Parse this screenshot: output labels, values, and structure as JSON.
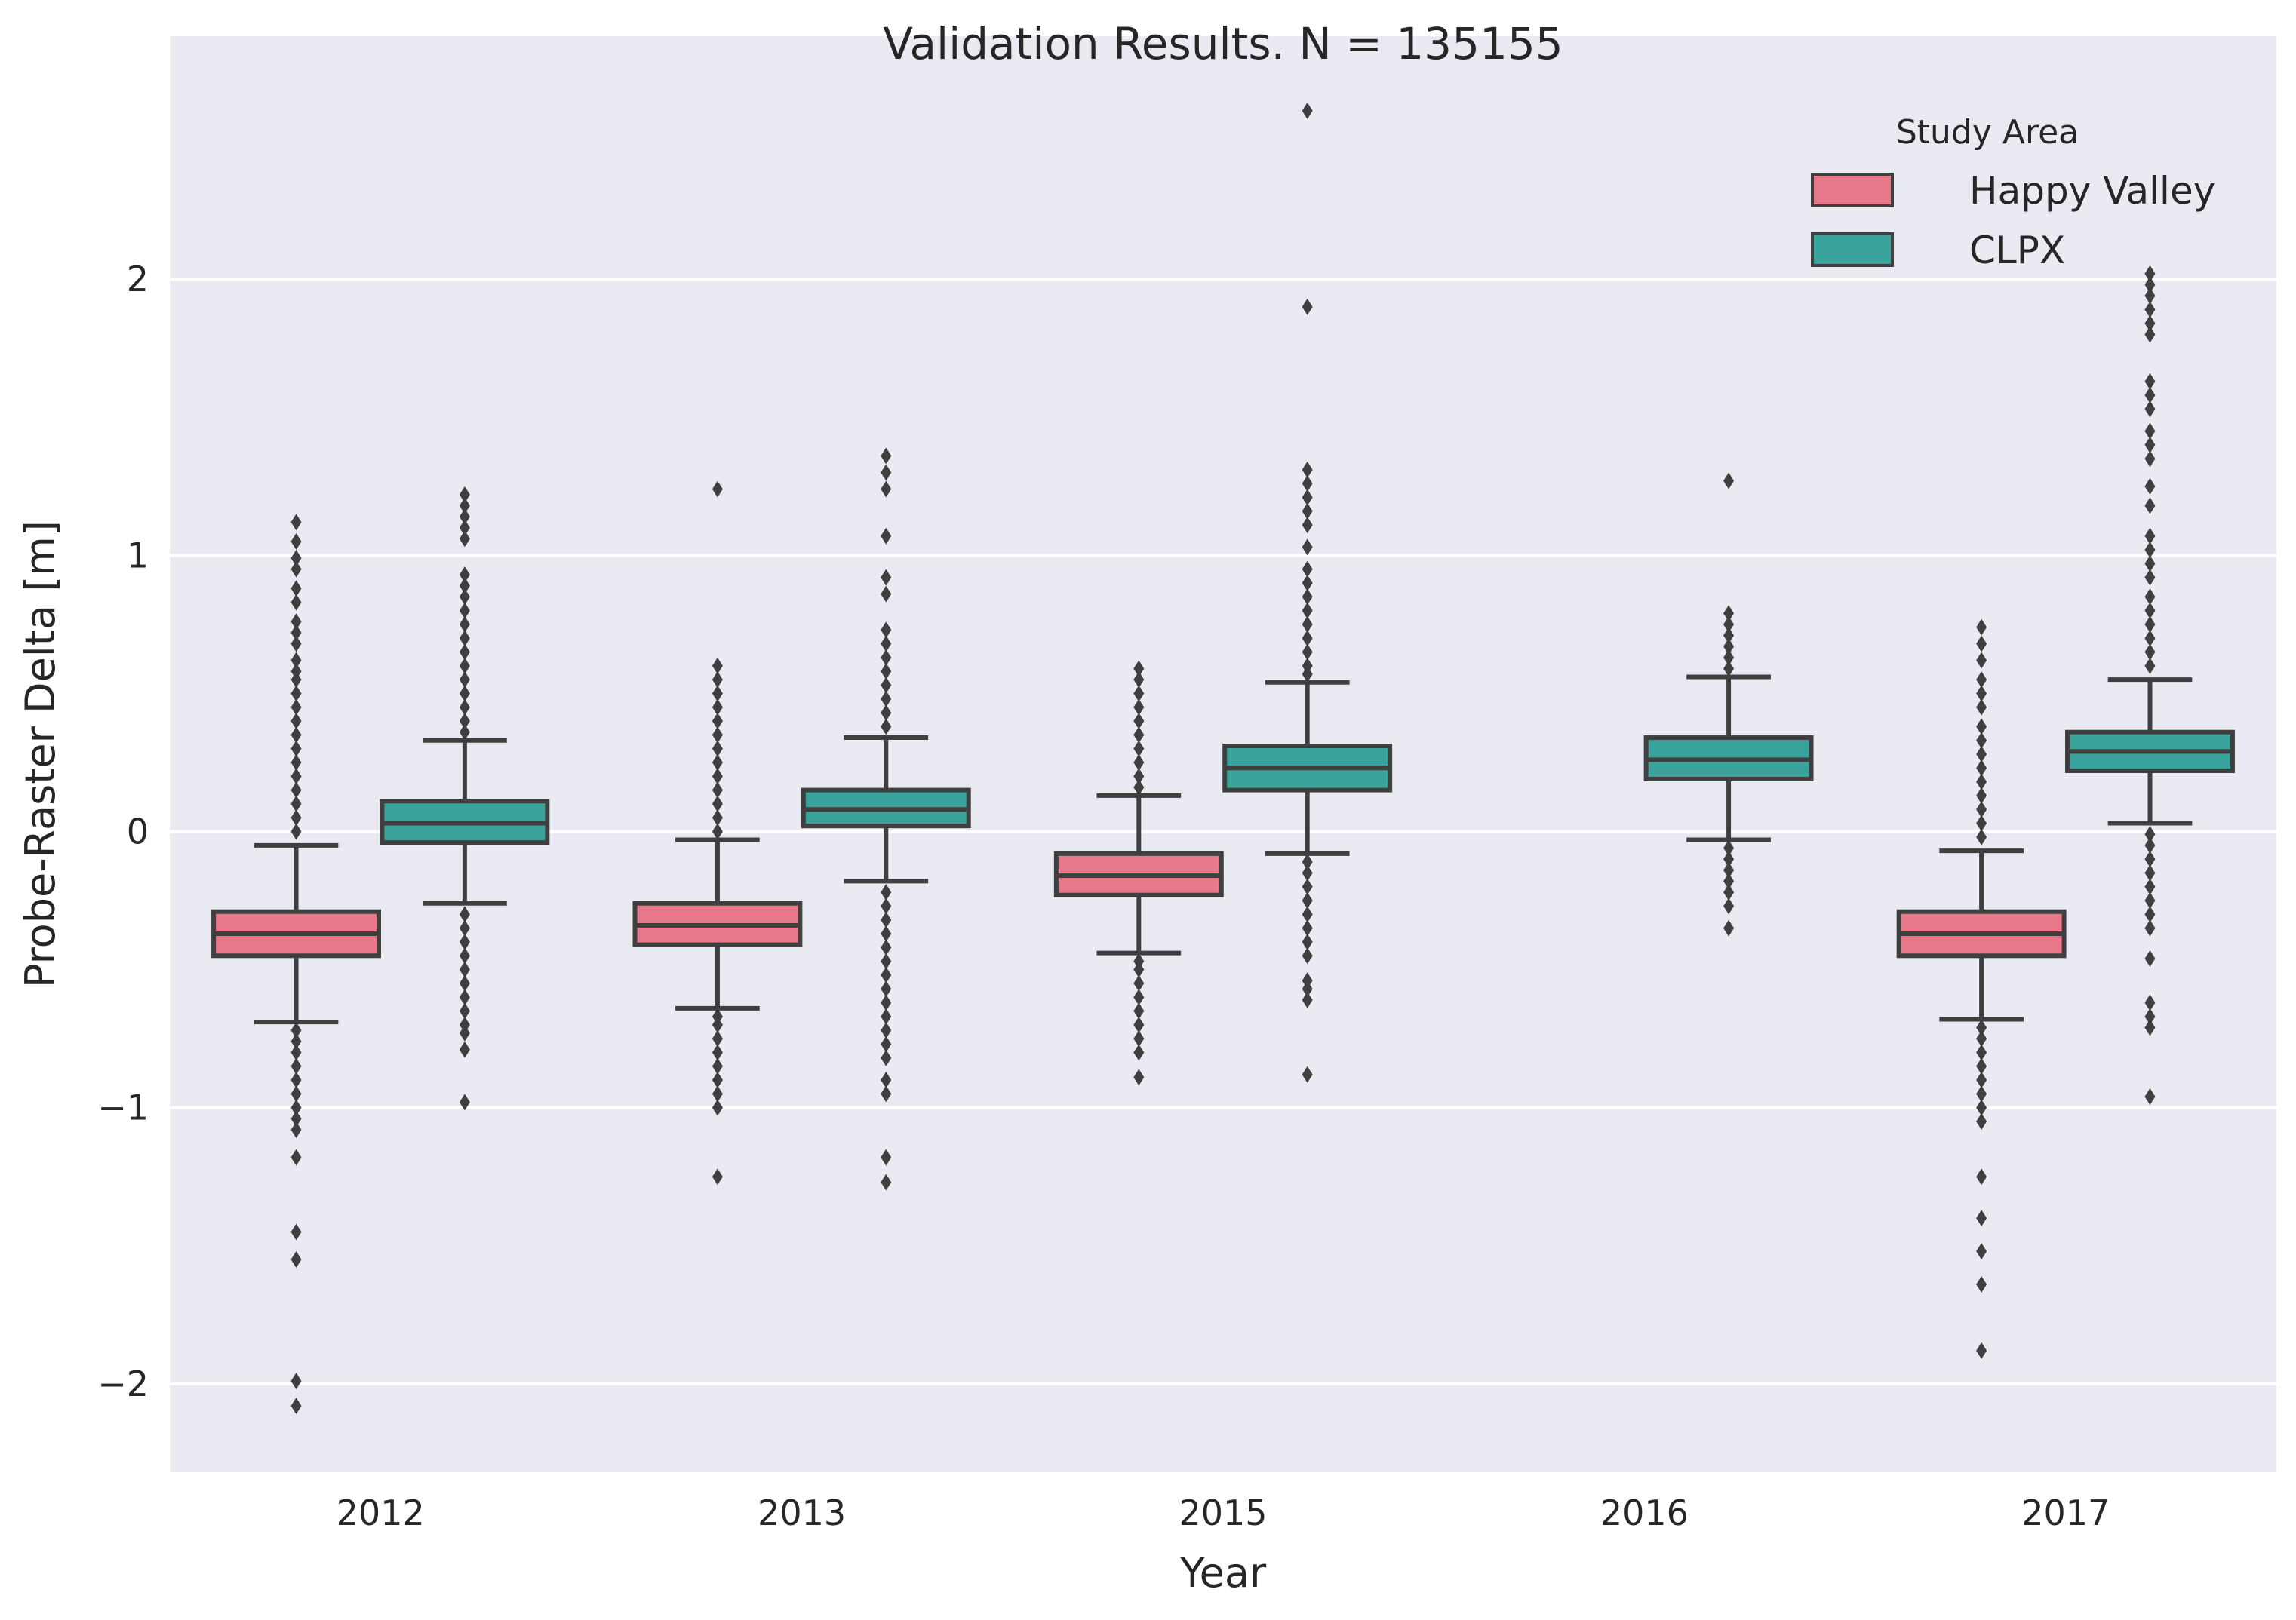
{
  "chart_data": {
    "type": "box",
    "title": "Validation Results. N = 135155",
    "xlabel": "Year",
    "ylabel": "Probe-Raster Delta [m]",
    "categories": [
      "2012",
      "2013",
      "2015",
      "2016",
      "2017"
    ],
    "ylim": [
      -2.32,
      2.88
    ],
    "yticks": [
      -2,
      -1,
      0,
      1,
      2
    ],
    "ytick_labels": [
      "−2",
      "−1",
      "0",
      "1",
      "2"
    ],
    "grid": true,
    "background": "#eaeaf2",
    "legend": {
      "title": "Study Area",
      "placement": "top-right",
      "entries": [
        "Happy Valley",
        "CLPX"
      ]
    },
    "series": [
      {
        "name": "Happy Valley",
        "color": "#e7788a",
        "boxes": [
          {
            "category": "2012",
            "whisker_low": -0.69,
            "q1": -0.45,
            "median": -0.37,
            "q3": -0.29,
            "whisker_high": -0.05,
            "outliers": [
              1.12,
              1.05,
              0.99,
              0.95,
              0.88,
              0.83,
              0.76,
              0.72,
              0.68,
              0.62,
              0.58,
              0.55,
              0.5,
              0.45,
              0.4,
              0.35,
              0.3,
              0.25,
              0.2,
              0.15,
              0.1,
              0.05,
              0.0,
              -0.72,
              -0.76,
              -0.8,
              -0.85,
              -0.9,
              -0.95,
              -1.0,
              -1.04,
              -1.08,
              -1.18,
              -1.45,
              -1.55,
              -1.99,
              -2.08
            ]
          },
          {
            "category": "2013",
            "whisker_low": -0.64,
            "q1": -0.41,
            "median": -0.34,
            "q3": -0.26,
            "whisker_high": -0.03,
            "outliers": [
              1.24,
              0.6,
              0.55,
              0.5,
              0.45,
              0.4,
              0.35,
              0.3,
              0.25,
              0.2,
              0.15,
              0.1,
              0.05,
              0.0,
              -0.67,
              -0.7,
              -0.75,
              -0.8,
              -0.85,
              -0.9,
              -0.95,
              -1.0,
              -1.25
            ]
          },
          {
            "category": "2015",
            "whisker_low": -0.44,
            "q1": -0.23,
            "median": -0.16,
            "q3": -0.08,
            "whisker_high": 0.13,
            "outliers": [
              0.59,
              0.55,
              0.5,
              0.45,
              0.4,
              0.35,
              0.3,
              0.25,
              0.2,
              0.16,
              -0.47,
              -0.5,
              -0.55,
              -0.6,
              -0.65,
              -0.7,
              -0.75,
              -0.8,
              -0.89
            ]
          },
          {
            "category": "2017",
            "whisker_low": -0.68,
            "q1": -0.45,
            "median": -0.37,
            "q3": -0.29,
            "whisker_high": -0.07,
            "outliers": [
              0.74,
              0.68,
              0.62,
              0.55,
              0.5,
              0.45,
              0.38,
              0.33,
              0.28,
              0.23,
              0.18,
              0.13,
              0.08,
              0.03,
              -0.02,
              -0.71,
              -0.75,
              -0.8,
              -0.85,
              -0.9,
              -0.95,
              -1.0,
              -1.05,
              -1.25,
              -1.4,
              -1.52,
              -1.64,
              -1.88
            ]
          }
        ]
      },
      {
        "name": "CLPX",
        "color": "#3aa39c",
        "boxes": [
          {
            "category": "2012",
            "whisker_low": -0.26,
            "q1": -0.04,
            "median": 0.03,
            "q3": 0.11,
            "whisker_high": 0.33,
            "outliers": [
              1.22,
              1.18,
              1.14,
              1.1,
              1.06,
              0.93,
              0.89,
              0.85,
              0.8,
              0.75,
              0.7,
              0.65,
              0.6,
              0.55,
              0.5,
              0.45,
              0.4,
              0.36,
              -0.3,
              -0.35,
              -0.4,
              -0.45,
              -0.5,
              -0.55,
              -0.6,
              -0.65,
              -0.7,
              -0.73,
              -0.79,
              -0.98
            ]
          },
          {
            "category": "2013",
            "whisker_low": -0.18,
            "q1": 0.02,
            "median": 0.08,
            "q3": 0.15,
            "whisker_high": 0.34,
            "outliers": [
              1.36,
              1.3,
              1.24,
              1.07,
              0.92,
              0.86,
              0.73,
              0.68,
              0.63,
              0.58,
              0.53,
              0.48,
              0.43,
              0.38,
              -0.22,
              -0.27,
              -0.32,
              -0.37,
              -0.42,
              -0.47,
              -0.52,
              -0.57,
              -0.62,
              -0.67,
              -0.72,
              -0.77,
              -0.82,
              -0.9,
              -0.95,
              -1.18,
              -1.27
            ]
          },
          {
            "category": "2015",
            "whisker_low": -0.08,
            "q1": 0.15,
            "median": 0.23,
            "q3": 0.31,
            "whisker_high": 0.54,
            "outliers": [
              2.61,
              1.9,
              1.31,
              1.26,
              1.21,
              1.16,
              1.11,
              1.03,
              0.95,
              0.9,
              0.85,
              0.8,
              0.75,
              0.7,
              0.65,
              0.6,
              0.57,
              -0.11,
              -0.15,
              -0.2,
              -0.25,
              -0.3,
              -0.35,
              -0.4,
              -0.45,
              -0.54,
              -0.57,
              -0.61,
              -0.88
            ]
          },
          {
            "category": "2016",
            "whisker_low": -0.03,
            "q1": 0.19,
            "median": 0.26,
            "q3": 0.34,
            "whisker_high": 0.56,
            "outliers": [
              1.27,
              0.79,
              0.75,
              0.71,
              0.67,
              0.63,
              0.59,
              -0.06,
              -0.1,
              -0.14,
              -0.18,
              -0.22,
              -0.27,
              -0.35
            ]
          },
          {
            "category": "2017",
            "whisker_low": 0.03,
            "q1": 0.22,
            "median": 0.29,
            "q3": 0.36,
            "whisker_high": 0.55,
            "outliers": [
              2.02,
              1.98,
              1.94,
              1.89,
              1.84,
              1.8,
              1.63,
              1.58,
              1.53,
              1.45,
              1.4,
              1.35,
              1.25,
              1.18,
              1.07,
              1.02,
              0.97,
              0.92,
              0.85,
              0.8,
              0.75,
              0.7,
              0.65,
              0.6,
              -0.01,
              -0.05,
              -0.1,
              -0.15,
              -0.2,
              -0.25,
              -0.3,
              -0.35,
              -0.46,
              -0.62,
              -0.67,
              -0.71,
              -0.96
            ]
          }
        ]
      }
    ]
  }
}
